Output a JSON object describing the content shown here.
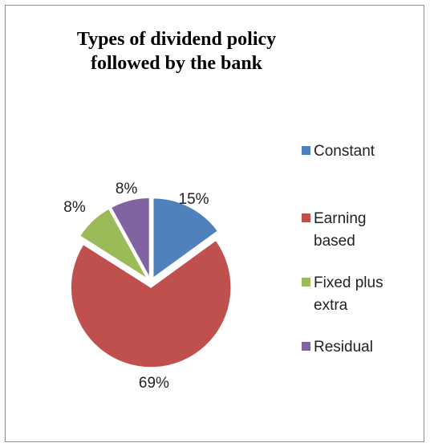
{
  "chart_data": {
    "type": "pie",
    "title_lines": [
      "Types of dividend policy",
      "followed by the bank"
    ],
    "categories": [
      "Constant",
      "Earning based",
      "Fixed plus extra",
      "Residual"
    ],
    "values": [
      15,
      69,
      8,
      8
    ],
    "data_labels": [
      "15%",
      "69%",
      "8%",
      "8%"
    ],
    "colors": [
      "#4f81bd",
      "#c0504d",
      "#9bbb59",
      "#8064a2"
    ],
    "exploded": true,
    "legend_position": "right"
  },
  "legend": {
    "items": [
      {
        "label_lines": [
          "Constant"
        ],
        "color": "#4f81bd"
      },
      {
        "label_lines": [
          "Earning",
          "based"
        ],
        "color": "#c0504d"
      },
      {
        "label_lines": [
          "Fixed plus",
          "extra"
        ],
        "color": "#9bbb59"
      },
      {
        "label_lines": [
          "Residual"
        ],
        "color": "#8064a2"
      }
    ]
  }
}
